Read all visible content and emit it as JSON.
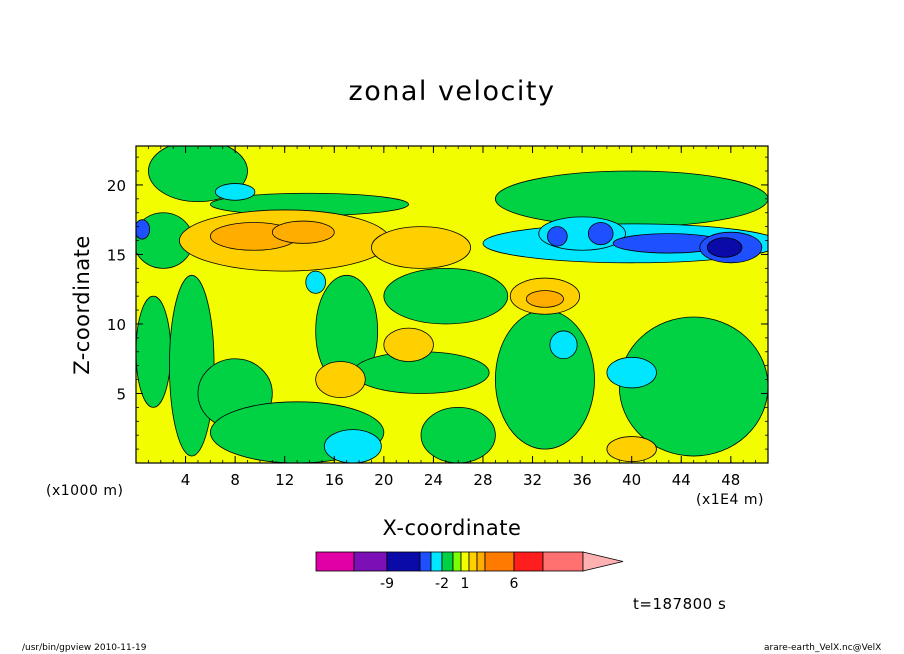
{
  "chart_data": {
    "type": "heatmap",
    "title": "zonal velocity",
    "xlabel": "X-coordinate",
    "ylabel": "Z-coordinate",
    "x_unit_left": "(x1000 m)",
    "x_unit_right": "(x1E4 m)",
    "xlim": [
      0,
      51
    ],
    "ylim": [
      0,
      22.8
    ],
    "x_ticks": [
      4,
      8,
      12,
      16,
      20,
      24,
      28,
      32,
      36,
      40,
      44,
      48
    ],
    "y_ticks": [
      5,
      10,
      15,
      20
    ],
    "time_label": "t=187800 s",
    "background_color": "#f2fe00",
    "colorbar": {
      "colors": [
        "#e000a6",
        "#7a10b6",
        "#0a0aa8",
        "#1e50ff",
        "#00e6ff",
        "#00d244",
        "#7cff00",
        "#f2fe00",
        "#ffd000",
        "#ffae00",
        "#ff7a00",
        "#ff1e1e",
        "#ff7070",
        "#ffb0b0"
      ],
      "labels": [
        {
          "text": "-9",
          "after_box": 2
        },
        {
          "text": "-2",
          "after_box": 5
        },
        {
          "text": "1",
          "after_box": 7.5
        },
        {
          "text": "6",
          "after_box": 11
        }
      ]
    },
    "regions": [
      {
        "level": "green",
        "color": "#00d244",
        "x": 5,
        "z": 21,
        "rx": 4,
        "rz": 2.2
      },
      {
        "level": "green",
        "color": "#00d244",
        "x": 2.2,
        "z": 16,
        "rx": 2.4,
        "rz": 2
      },
      {
        "level": "green",
        "color": "#00d244",
        "x": 1.4,
        "z": 8,
        "rx": 1.4,
        "rz": 4
      },
      {
        "level": "green",
        "color": "#00d244",
        "x": 4.5,
        "z": 7,
        "rx": 1.8,
        "rz": 6.5
      },
      {
        "level": "green",
        "color": "#00d244",
        "x": 8,
        "z": 5,
        "rx": 3,
        "rz": 2.5
      },
      {
        "level": "green",
        "color": "#00d244",
        "x": 13,
        "z": 2.2,
        "rx": 7,
        "rz": 2.2
      },
      {
        "level": "green",
        "color": "#00d244",
        "x": 17,
        "z": 9.5,
        "rx": 2.5,
        "rz": 4
      },
      {
        "level": "green",
        "color": "#00d244",
        "x": 23,
        "z": 6.5,
        "rx": 5.5,
        "rz": 1.5
      },
      {
        "level": "green",
        "color": "#00d244",
        "x": 26,
        "z": 2,
        "rx": 3,
        "rz": 2
      },
      {
        "level": "green",
        "color": "#00d244",
        "x": 33,
        "z": 6,
        "rx": 4,
        "rz": 5
      },
      {
        "level": "green",
        "color": "#00d244",
        "x": 45,
        "z": 5.5,
        "rx": 6,
        "rz": 5
      },
      {
        "level": "green",
        "color": "#00d244",
        "x": 40,
        "z": 19,
        "rx": 11,
        "rz": 2
      },
      {
        "level": "green",
        "color": "#00d244",
        "x": 25,
        "z": 12,
        "rx": 5,
        "rz": 2
      },
      {
        "level": "green",
        "color": "#00d244",
        "x": 14,
        "z": 18.6,
        "rx": 8,
        "rz": 0.8
      },
      {
        "level": "orange-light",
        "color": "#ffd000",
        "x": 12,
        "z": 16,
        "rx": 8.5,
        "rz": 2.2
      },
      {
        "level": "orange-light",
        "color": "#ffd000",
        "x": 23,
        "z": 15.5,
        "rx": 4,
        "rz": 1.5
      },
      {
        "level": "orange-light",
        "color": "#ffd000",
        "x": 33,
        "z": 12,
        "rx": 2.8,
        "rz": 1.3
      },
      {
        "level": "orange-light",
        "color": "#ffd000",
        "x": 16.5,
        "z": 6,
        "rx": 2,
        "rz": 1.3
      },
      {
        "level": "orange-light",
        "color": "#ffd000",
        "x": 22,
        "z": 8.5,
        "rx": 2,
        "rz": 1.2
      },
      {
        "level": "orange-light",
        "color": "#ffd000",
        "x": 40,
        "z": 1,
        "rx": 2,
        "rz": 0.9
      },
      {
        "level": "orange",
        "color": "#ffae00",
        "x": 9.5,
        "z": 16.3,
        "rx": 3.5,
        "rz": 1
      },
      {
        "level": "orange",
        "color": "#ffae00",
        "x": 13.5,
        "z": 16.6,
        "rx": 2.5,
        "rz": 0.8
      },
      {
        "level": "orange",
        "color": "#ffae00",
        "x": 33,
        "z": 11.8,
        "rx": 1.5,
        "rz": 0.6
      },
      {
        "level": "cyan",
        "color": "#00e6ff",
        "x": 40,
        "z": 6.5,
        "rx": 2,
        "rz": 1.1
      },
      {
        "level": "cyan",
        "color": "#00e6ff",
        "x": 34.5,
        "z": 8.5,
        "rx": 1.1,
        "rz": 1
      },
      {
        "level": "cyan",
        "color": "#00e6ff",
        "x": 17.5,
        "z": 1.2,
        "rx": 2.3,
        "rz": 1.2
      },
      {
        "level": "cyan",
        "color": "#00e6ff",
        "x": 8,
        "z": 19.5,
        "rx": 1.6,
        "rz": 0.6
      },
      {
        "level": "cyan",
        "color": "#00e6ff",
        "x": 14.5,
        "z": 13,
        "rx": 0.8,
        "rz": 0.8
      },
      {
        "level": "cyan",
        "color": "#00e6ff",
        "x": 40,
        "z": 15.8,
        "rx": 12,
        "rz": 1.4
      },
      {
        "level": "cyan",
        "color": "#00e6ff",
        "x": 36,
        "z": 16.5,
        "rx": 3.5,
        "rz": 1.2
      },
      {
        "level": "blue-light",
        "color": "#1e50ff",
        "x": 43,
        "z": 15.8,
        "rx": 4.5,
        "rz": 0.7
      },
      {
        "level": "blue-light",
        "color": "#1e50ff",
        "x": 48,
        "z": 15.5,
        "rx": 2.5,
        "rz": 1.1
      },
      {
        "level": "blue-light",
        "color": "#1e50ff",
        "x": 37.5,
        "z": 16.5,
        "rx": 1,
        "rz": 0.8
      },
      {
        "level": "blue-light",
        "color": "#1e50ff",
        "x": 34,
        "z": 16.3,
        "rx": 0.8,
        "rz": 0.7
      },
      {
        "level": "blue-light",
        "color": "#1e50ff",
        "x": 0.5,
        "z": 16.8,
        "rx": 0.6,
        "rz": 0.7
      },
      {
        "level": "blue",
        "color": "#0a0aa8",
        "x": 47.5,
        "z": 15.5,
        "rx": 1.4,
        "rz": 0.7
      }
    ]
  },
  "footer": {
    "left": "/usr/bin/gpview   2010-11-19",
    "right": "arare-earth_VelX.nc@VelX"
  }
}
